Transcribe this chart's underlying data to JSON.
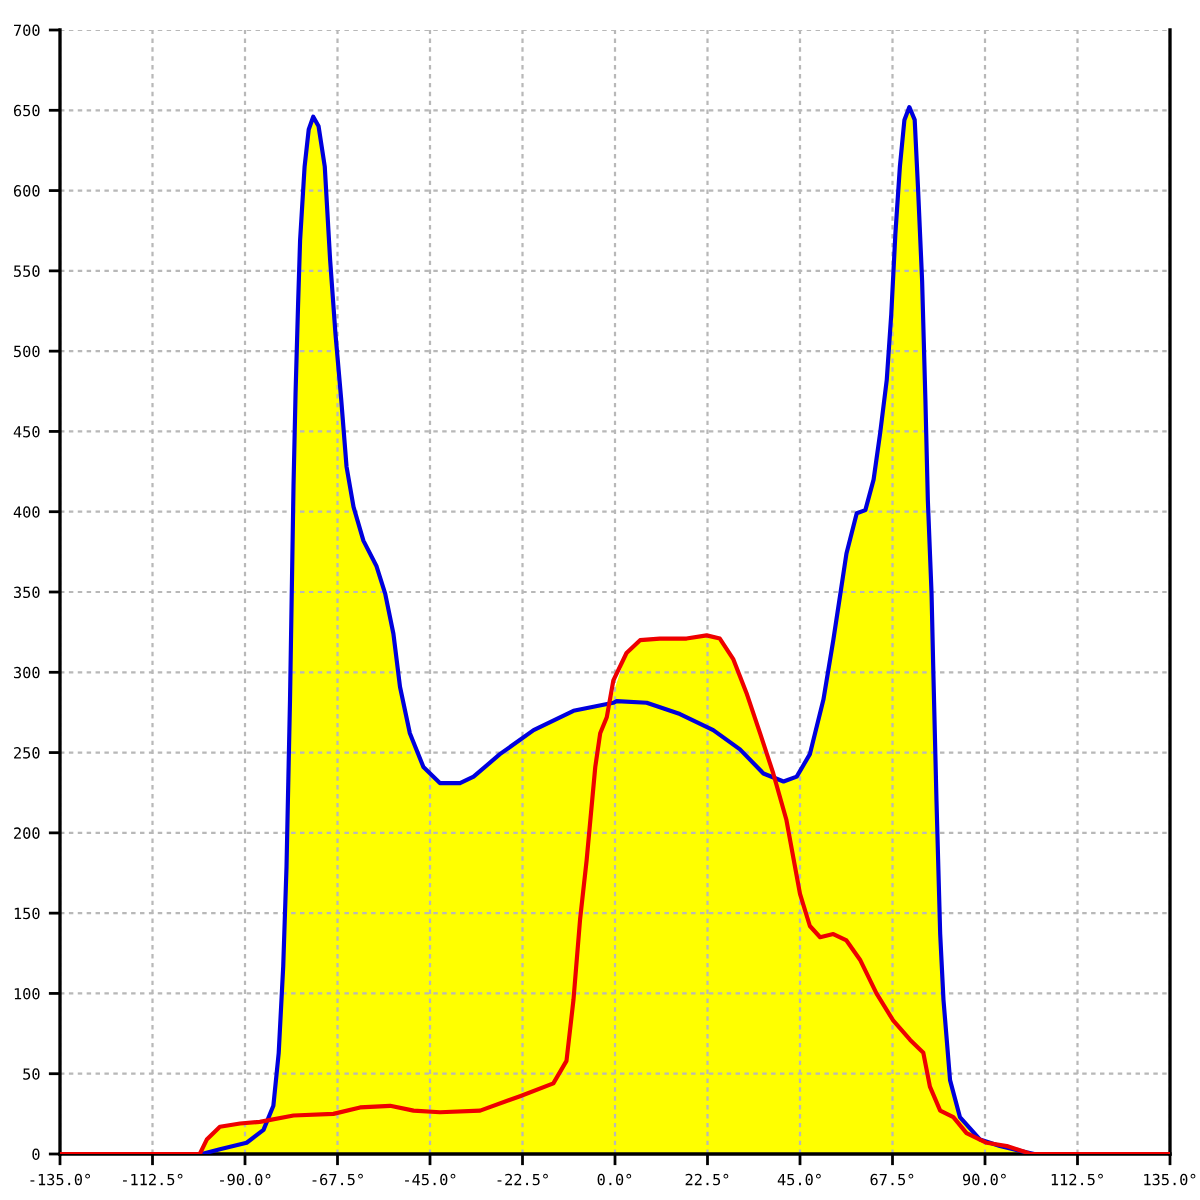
{
  "chart_data": {
    "type": "area",
    "xlim": [
      -135,
      135
    ],
    "ylim": [
      0,
      700
    ],
    "xticks": [
      {
        "value": -135,
        "label": "-135.0°"
      },
      {
        "value": -112.5,
        "label": "-112.5°"
      },
      {
        "value": -90,
        "label": "-90.0°"
      },
      {
        "value": -67.5,
        "label": "-67.5°"
      },
      {
        "value": -45,
        "label": "-45.0°"
      },
      {
        "value": -22.5,
        "label": "-22.5°"
      },
      {
        "value": 0,
        "label": "0.0°"
      },
      {
        "value": 22.5,
        "label": "22.5°"
      },
      {
        "value": 45,
        "label": "45.0°"
      },
      {
        "value": 67.5,
        "label": "67.5°"
      },
      {
        "value": 90,
        "label": "90.0°"
      },
      {
        "value": 112.5,
        "label": "112.5°"
      },
      {
        "value": 135,
        "label": "135.0°"
      }
    ],
    "yticks": [
      0,
      50,
      100,
      150,
      200,
      250,
      300,
      350,
      400,
      450,
      500,
      550,
      600,
      650,
      700
    ],
    "grid": true,
    "series": [
      {
        "color": "#ffff00",
        "x": [
          -101,
          -99.3,
          -96.1,
          -91.2,
          -86.4,
          -84.5,
          -83.1,
          -81.8,
          -80.7,
          -79.9,
          -79.05,
          -78.2,
          -77.7,
          -77.1,
          -76.6,
          -75.5,
          -74.5,
          -73.4,
          -72.1,
          -70.6,
          -69.3,
          -68.0,
          -66.6,
          -65.3,
          -63.6,
          -61.2,
          -58.0,
          -55.9,
          -53.9,
          -52.3,
          -49.9,
          -46.6,
          -42.6,
          -37.7,
          -34.4,
          -28.0,
          -19.8,
          -10.1,
          -1.2,
          2.8,
          6.1,
          10.9,
          17.4,
          22.3,
          25.5,
          28.8,
          32.0,
          35.3,
          39.0,
          41.0,
          44.2,
          47.4,
          50.7,
          53.1,
          54.7,
          56.3,
          58.8,
          60.9,
          62.9,
          64.5,
          66.1,
          67.2,
          68.2,
          69.3,
          70.4,
          71.6,
          72.9,
          73.7,
          74.7,
          75.5,
          76.1,
          77.0,
          77.4,
          78.2,
          79.1,
          79.9,
          81.5,
          83.9,
          88.8,
          93.6,
          100.1,
          102
        ],
        "values": [
          0,
          9,
          17,
          19,
          20,
          21,
          30,
          63,
          117,
          179,
          283,
          416,
          474,
          528,
          569,
          615,
          638,
          646,
          640,
          615,
          557,
          511,
          470,
          428,
          403,
          382,
          366,
          349,
          324,
          291,
          262,
          241,
          231,
          231,
          235,
          249,
          264,
          276,
          281,
          312,
          320,
          321,
          321,
          323,
          321,
          308,
          287,
          262,
          234,
          232,
          235,
          249,
          283,
          320,
          347,
          374,
          399,
          401,
          420,
          449,
          482,
          523,
          573,
          615,
          644,
          652,
          644,
          602,
          544,
          470,
          407,
          349,
          304,
          220,
          137,
          96,
          46,
          23,
          9,
          5,
          1,
          0
        ]
      },
      {
        "type": "line",
        "color": "#0000dd",
        "x": [
          -135,
          -100.5,
          -96.1,
          -89.6,
          -85.5,
          -83.1,
          -81.8,
          -80.7,
          -79.9,
          -79.05,
          -78.2,
          -77.7,
          -77.1,
          -76.6,
          -75.5,
          -74.5,
          -73.4,
          -72.1,
          -70.6,
          -69.3,
          -68.0,
          -66.6,
          -65.3,
          -63.6,
          -61.2,
          -58.0,
          -55.9,
          -53.9,
          -52.3,
          -49.9,
          -46.6,
          -42.6,
          -37.7,
          -34.4,
          -28.0,
          -19.8,
          -10.1,
          -0.4,
          0.4,
          7.7,
          15.8,
          23.9,
          30.4,
          36.1,
          41.0,
          44.2,
          47.4,
          50.7,
          53.1,
          54.7,
          56.3,
          58.8,
          60.9,
          62.9,
          64.5,
          66.1,
          67.2,
          68.2,
          69.3,
          70.4,
          71.6,
          72.9,
          73.7,
          74.7,
          75.5,
          76.1,
          77.0,
          77.4,
          78.2,
          79.1,
          79.9,
          81.5,
          83.9,
          88.8,
          93.6,
          100.1,
          102,
          135
        ],
        "values": [
          0,
          0,
          3,
          7,
          15,
          30,
          63,
          117,
          179,
          283,
          416,
          474,
          528,
          569,
          615,
          638,
          646,
          640,
          615,
          557,
          511,
          470,
          428,
          403,
          382,
          366,
          349,
          324,
          291,
          262,
          241,
          231,
          231,
          235,
          249,
          264,
          276,
          281,
          282,
          281,
          274,
          264,
          252,
          237,
          232,
          235,
          249,
          283,
          320,
          347,
          374,
          399,
          401,
          420,
          449,
          482,
          523,
          573,
          615,
          644,
          652,
          644,
          602,
          544,
          470,
          407,
          349,
          304,
          220,
          137,
          96,
          46,
          23,
          9,
          5,
          1,
          0,
          0
        ]
      },
      {
        "type": "line",
        "color": "#ee0000",
        "x": [
          -135,
          -101,
          -99.3,
          -96.1,
          -91.2,
          -86.4,
          -78.2,
          -68.5,
          -62.0,
          -54.7,
          -49.0,
          -42.6,
          -32.8,
          -23.1,
          -15.0,
          -11.8,
          -10.1,
          -8.5,
          -6.9,
          -4.8,
          -3.6,
          -2.0,
          -0.4,
          2.8,
          6.1,
          10.9,
          17.4,
          22.3,
          25.5,
          28.8,
          32.0,
          35.3,
          38.5,
          41.7,
          45.0,
          47.4,
          49.9,
          53.1,
          56.3,
          59.6,
          63.6,
          67.7,
          71.8,
          75.0,
          76.6,
          79.1,
          82.3,
          85.5,
          90.4,
          95.3,
          100.1,
          101,
          135
        ],
        "values": [
          0,
          0,
          9,
          17,
          19,
          20,
          24,
          25,
          29,
          30,
          27,
          26,
          27,
          36,
          44,
          58,
          96,
          146,
          183,
          241,
          262,
          272,
          295,
          312,
          320,
          321,
          321,
          323,
          321,
          308,
          287,
          262,
          237,
          208,
          162,
          142,
          135,
          137,
          133,
          121,
          100,
          83,
          71,
          63,
          42,
          27,
          23,
          13,
          7,
          5,
          1,
          0,
          0
        ]
      }
    ]
  }
}
